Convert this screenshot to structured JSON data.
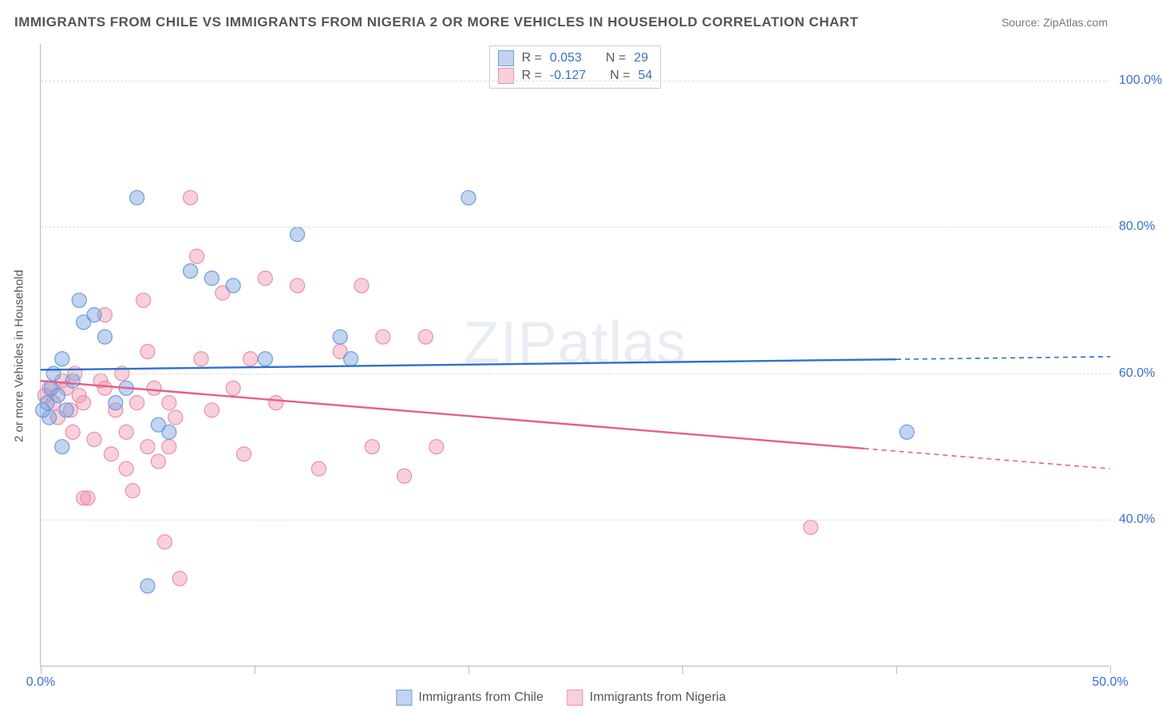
{
  "title": "IMMIGRANTS FROM CHILE VS IMMIGRANTS FROM NIGERIA 2 OR MORE VEHICLES IN HOUSEHOLD CORRELATION CHART",
  "source": "Source: ZipAtlas.com",
  "watermark": {
    "bold": "ZIP",
    "thin": "atlas"
  },
  "y_axis": {
    "title": "2 or more Vehicles in Household",
    "min": 20,
    "max": 105,
    "ticks": [
      40,
      60,
      80,
      100
    ],
    "tick_labels": [
      "40.0%",
      "60.0%",
      "80.0%",
      "100.0%"
    ],
    "label_color": "#3a6fcf"
  },
  "x_axis": {
    "min": 0,
    "max": 50,
    "ticks": [
      0,
      10,
      20,
      30,
      40,
      50
    ],
    "end_labels": {
      "left": "0.0%",
      "right": "50.0%"
    },
    "label_color": "#3a6fcf"
  },
  "grid_color": "#dddddd",
  "series": {
    "chile": {
      "label": "Immigrants from Chile",
      "fill": "rgba(120,160,220,0.45)",
      "stroke": "#6a9de0",
      "line_color": "#2f6fd0",
      "R": "0.053",
      "N": "29",
      "regression": {
        "x1": 0,
        "y1": 60.5,
        "x2": 50,
        "y2": 62.3
      },
      "solid_until_x": 40,
      "points": [
        [
          0.1,
          55
        ],
        [
          0.3,
          56
        ],
        [
          0.5,
          58
        ],
        [
          0.4,
          54
        ],
        [
          0.6,
          60
        ],
        [
          0.8,
          57
        ],
        [
          1.0,
          62
        ],
        [
          1.2,
          55
        ],
        [
          1.5,
          59
        ],
        [
          1.8,
          70
        ],
        [
          2.0,
          67
        ],
        [
          2.5,
          68
        ],
        [
          3.0,
          65
        ],
        [
          3.5,
          56
        ],
        [
          4.0,
          58
        ],
        [
          4.5,
          84
        ],
        [
          5.0,
          31
        ],
        [
          5.5,
          53
        ],
        [
          6.0,
          52
        ],
        [
          7.0,
          74
        ],
        [
          8.0,
          73
        ],
        [
          9.0,
          72
        ],
        [
          10.5,
          62
        ],
        [
          12.0,
          79
        ],
        [
          14.0,
          65
        ],
        [
          14.5,
          62
        ],
        [
          20.0,
          84
        ],
        [
          40.5,
          52
        ],
        [
          1.0,
          50
        ]
      ]
    },
    "nigeria": {
      "label": "Immigrants from Nigeria",
      "fill": "rgba(240,150,175,0.45)",
      "stroke": "#ea8fa8",
      "line_color": "#e85f87",
      "R": "-0.127",
      "N": "54",
      "regression": {
        "x1": 0,
        "y1": 59.0,
        "x2": 50,
        "y2": 47.0
      },
      "solid_until_x": 38.5,
      "points": [
        [
          0.2,
          57
        ],
        [
          0.4,
          58
        ],
        [
          0.6,
          56
        ],
        [
          0.8,
          54
        ],
        [
          1.0,
          59
        ],
        [
          1.2,
          58
        ],
        [
          1.4,
          55
        ],
        [
          1.6,
          60
        ],
        [
          1.8,
          57
        ],
        [
          2.0,
          56
        ],
        [
          2.2,
          43
        ],
        [
          2.5,
          51
        ],
        [
          2.8,
          59
        ],
        [
          3.0,
          58
        ],
        [
          3.3,
          49
        ],
        [
          3.5,
          55
        ],
        [
          3.8,
          60
        ],
        [
          4.0,
          47
        ],
        [
          4.3,
          44
        ],
        [
          4.5,
          56
        ],
        [
          4.8,
          70
        ],
        [
          5.0,
          50
        ],
        [
          5.3,
          58
        ],
        [
          5.5,
          48
        ],
        [
          5.8,
          37
        ],
        [
          6.0,
          56
        ],
        [
          6.3,
          54
        ],
        [
          6.5,
          32
        ],
        [
          7.0,
          84
        ],
        [
          7.3,
          76
        ],
        [
          7.5,
          62
        ],
        [
          8.0,
          55
        ],
        [
          8.5,
          71
        ],
        [
          9.0,
          58
        ],
        [
          9.5,
          49
        ],
        [
          9.8,
          62
        ],
        [
          10.5,
          73
        ],
        [
          11.0,
          56
        ],
        [
          12.0,
          72
        ],
        [
          13.0,
          47
        ],
        [
          14.0,
          63
        ],
        [
          15.0,
          72
        ],
        [
          15.5,
          50
        ],
        [
          16.0,
          65
        ],
        [
          17.0,
          46
        ],
        [
          18.0,
          65
        ],
        [
          18.5,
          50
        ],
        [
          36.0,
          39
        ],
        [
          2.0,
          43
        ],
        [
          3.0,
          68
        ],
        [
          4.0,
          52
        ],
        [
          5.0,
          63
        ],
        [
          6.0,
          50
        ],
        [
          1.5,
          52
        ]
      ]
    }
  },
  "marker_radius": 9
}
